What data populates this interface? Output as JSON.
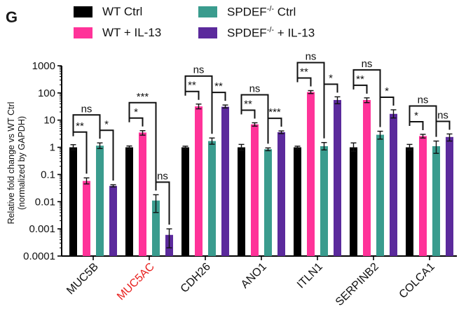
{
  "panel_letter": "G",
  "colors": {
    "WT Ctrl": "#000000",
    "WT + IL-13": "#ff3399",
    "SPDEF Ctrl": "#3a9c8e",
    "SPDEF + IL-13": "#5b2a9c",
    "highlight_label": "#e8211f",
    "axis": "#000000"
  },
  "legend": [
    {
      "key": "WT Ctrl",
      "base": "WT Ctrl",
      "sup": "",
      "rest": ""
    },
    {
      "key": "WT + IL-13",
      "base": "WT + IL-13",
      "sup": "",
      "rest": ""
    },
    {
      "key": "SPDEF Ctrl",
      "base": "SPDEF",
      "sup": "-/-",
      "rest": " Ctrl"
    },
    {
      "key": "SPDEF + IL-13",
      "base": "SPDEF",
      "sup": "-/-",
      "rest": " + IL-13"
    }
  ],
  "chart_data": {
    "type": "bar",
    "scale": "log10",
    "ylabel_line1": "Relative fold change vs WT Ctrl",
    "ylabel_line2": "(normalized by GAPDH)",
    "ylim": [
      0.0001,
      1000
    ],
    "yticks": [
      {
        "value": 0.0001,
        "label": "0.0001"
      },
      {
        "value": 0.001,
        "label": "0.001"
      },
      {
        "value": 0.01,
        "label": "0.01"
      },
      {
        "value": 0.1,
        "label": "0.1"
      },
      {
        "value": 1,
        "label": "1"
      },
      {
        "value": 10,
        "label": "10"
      },
      {
        "value": 100,
        "label": "100"
      },
      {
        "value": 1000,
        "label": "1000"
      }
    ],
    "categories": [
      "MUC5B",
      "MUC5AC",
      "CDH26",
      "ANO1",
      "ITLN1",
      "SERPINB2",
      "COLCA1"
    ],
    "highlighted_categories": [
      "MUC5AC"
    ],
    "series": [
      {
        "name": "WT Ctrl",
        "values": [
          1,
          1,
          1,
          1,
          1,
          1,
          1
        ],
        "err_low": [
          0.8,
          0.85,
          0.87,
          0.78,
          0.87,
          0.72,
          0.8
        ],
        "err_high": [
          1.25,
          1.12,
          1.1,
          1.28,
          1.1,
          1.45,
          1.28
        ]
      },
      {
        "name": "WT + IL-13",
        "values": [
          0.058,
          3.5,
          32,
          7,
          108,
          55,
          2.6
        ],
        "err_low": [
          0.045,
          2.8,
          26,
          6,
          95,
          44,
          2.2
        ],
        "err_high": [
          0.075,
          4.1,
          39,
          8,
          122,
          66,
          3.0
        ]
      },
      {
        "name": "SPDEF Ctrl",
        "values": [
          1.15,
          0.011,
          1.7,
          0.85,
          1.1,
          2.9,
          1.1
        ],
        "err_low": [
          0.9,
          0.004,
          1.3,
          0.75,
          0.8,
          2.0,
          0.6
        ],
        "err_high": [
          1.45,
          0.018,
          2.2,
          0.95,
          1.5,
          3.9,
          1.7
        ]
      },
      {
        "name": "SPDEF + IL-13",
        "values": [
          0.038,
          0.0006,
          31,
          3.6,
          55,
          17,
          2.4
        ],
        "err_low": [
          0.035,
          0.0002,
          28,
          3.2,
          40,
          12,
          1.7
        ],
        "err_high": [
          0.042,
          0.001,
          36,
          4.0,
          72,
          24,
          3.1
        ]
      }
    ],
    "significance": [
      {
        "category": "MUC5B",
        "comparisons": [
          {
            "from": 0,
            "to": 1,
            "label": "**"
          },
          {
            "from": 0,
            "to": 2,
            "label": "ns"
          },
          {
            "from": 2,
            "to": 3,
            "label": "*"
          }
        ]
      },
      {
        "category": "MUC5AC",
        "comparisons": [
          {
            "from": 0,
            "to": 1,
            "label": "*"
          },
          {
            "from": 0,
            "to": 2,
            "label": "***"
          },
          {
            "from": 2,
            "to": 3,
            "label": "ns"
          }
        ]
      },
      {
        "category": "CDH26",
        "comparisons": [
          {
            "from": 0,
            "to": 1,
            "label": "**"
          },
          {
            "from": 0,
            "to": 2,
            "label": "ns"
          },
          {
            "from": 2,
            "to": 3,
            "label": "**"
          }
        ]
      },
      {
        "category": "ANO1",
        "comparisons": [
          {
            "from": 0,
            "to": 1,
            "label": "**"
          },
          {
            "from": 0,
            "to": 2,
            "label": "ns"
          },
          {
            "from": 2,
            "to": 3,
            "label": "***"
          }
        ]
      },
      {
        "category": "ITLN1",
        "comparisons": [
          {
            "from": 0,
            "to": 1,
            "label": "**"
          },
          {
            "from": 0,
            "to": 2,
            "label": "ns"
          },
          {
            "from": 2,
            "to": 3,
            "label": "*"
          }
        ]
      },
      {
        "category": "SERPINB2",
        "comparisons": [
          {
            "from": 0,
            "to": 1,
            "label": "**"
          },
          {
            "from": 0,
            "to": 2,
            "label": "ns"
          },
          {
            "from": 2,
            "to": 3,
            "label": "*"
          }
        ]
      },
      {
        "category": "COLCA1",
        "comparisons": [
          {
            "from": 0,
            "to": 1,
            "label": "*"
          },
          {
            "from": 0,
            "to": 2,
            "label": "ns"
          },
          {
            "from": 2,
            "to": 3,
            "label": "ns"
          }
        ]
      }
    ]
  }
}
